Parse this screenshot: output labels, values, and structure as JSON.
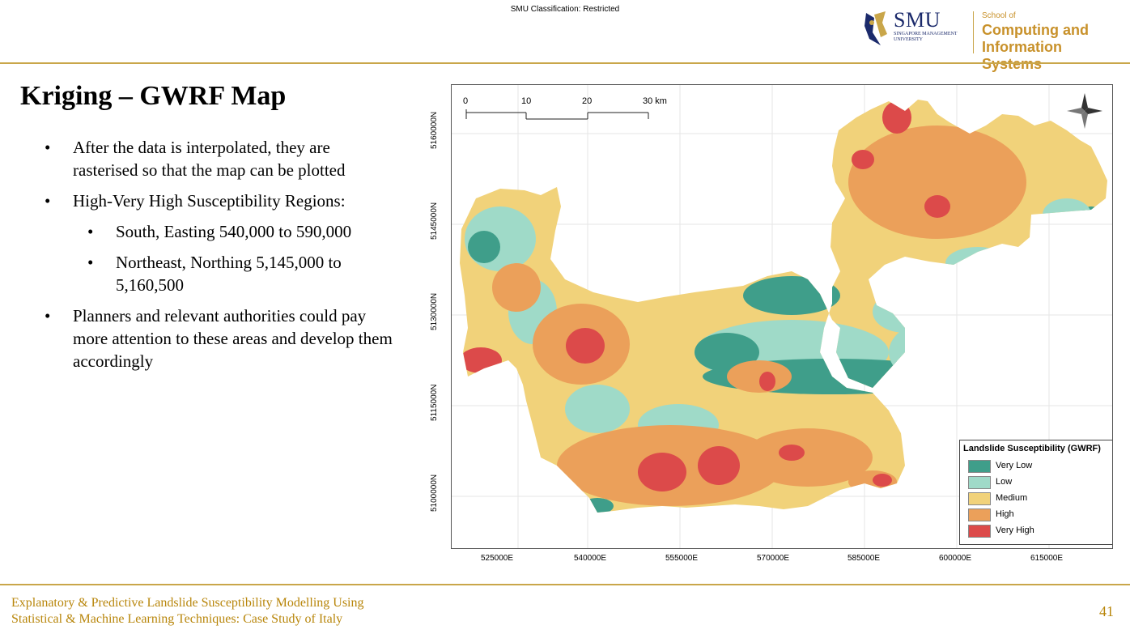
{
  "header": {
    "classification": "SMU Classification: Restricted",
    "logo_smu": "SMU",
    "logo_smu_sub": "SINGAPORE MANAGEMENT UNIVERSITY",
    "logo_school_small": "School of",
    "logo_school_line1": "Computing and",
    "logo_school_line2": "Information Systems",
    "accent_color": "#c9a64a"
  },
  "slide": {
    "title": "Kriging – GWRF Map",
    "bullets": [
      {
        "text": "After the data is interpolated, they are rasterised so that the map can be plotted"
      },
      {
        "text": "High-Very High Susceptibility Regions:"
      },
      {
        "text": "South, Easting 540,000 to 590,000"
      },
      {
        "text": "Northeast, Northing 5,145,000 to 5,160,500"
      },
      {
        "text": "Planners and relevant authorities could pay more attention to these areas and develop them accordingly"
      }
    ],
    "bullet_glyph": "•"
  },
  "map": {
    "x_ticks": [
      "525000E",
      "540000E",
      "555000E",
      "570000E",
      "585000E",
      "600000E",
      "615000E"
    ],
    "y_ticks": [
      "5160000N",
      "5145000N",
      "5130000N",
      "5115000N",
      "5100000N"
    ],
    "scale_bar": {
      "labels": [
        "0",
        "10",
        "20",
        "30 km"
      ]
    },
    "north_arrow": "compass-icon",
    "legend": {
      "title": "Landslide Susceptibility (GWRF)",
      "items": [
        {
          "label": "Very Low",
          "color": "#3f9e8a"
        },
        {
          "label": "Low",
          "color": "#9fdac8"
        },
        {
          "label": "Medium",
          "color": "#f1d27a"
        },
        {
          "label": "High",
          "color": "#eba05a"
        },
        {
          "label": "Very High",
          "color": "#dc4a4a"
        }
      ]
    }
  },
  "footer": {
    "line1": "Explanatory & Predictive Landslide Susceptibility Modelling Using",
    "line2": "Statistical & Machine Learning Techniques: Case Study of Italy",
    "page_number": "41"
  }
}
